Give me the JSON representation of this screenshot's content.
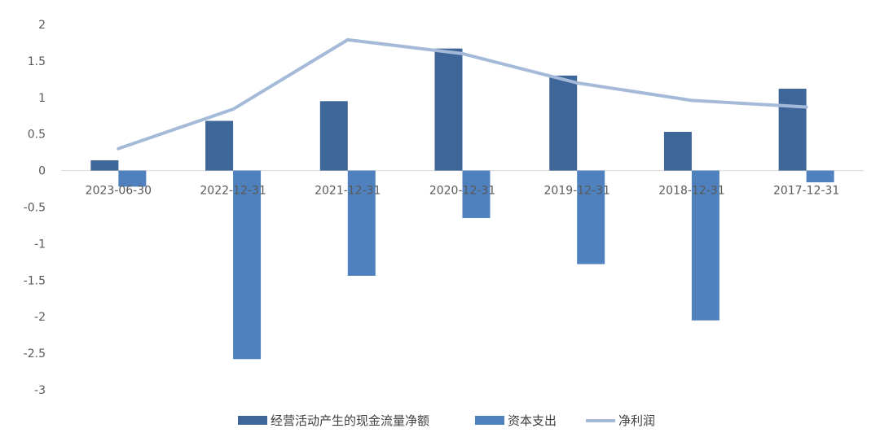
{
  "chart_data": {
    "type": "bar",
    "categories": [
      "2023-06-30",
      "2022-12-31",
      "2021-12-31",
      "2020-12-31",
      "2019-12-31",
      "2018-12-31",
      "2017-12-31"
    ],
    "ylim": [
      -3,
      2
    ],
    "yticks": [
      2,
      1.5,
      1,
      0.5,
      0,
      -0.5,
      -1,
      -1.5,
      -2,
      -2.5,
      -3
    ],
    "ytick_labels": [
      "2",
      "1.5",
      "1",
      "0.5",
      "0",
      "-0.5",
      "-1",
      "-1.5",
      "-2",
      "-2.5",
      "-3"
    ],
    "grid": false,
    "legend_position": "bottom",
    "series": [
      {
        "name": "经营活动产生的现金流量净额",
        "type": "bar",
        "color": "#3F6699",
        "values": [
          0.14,
          0.68,
          0.95,
          1.67,
          1.3,
          0.53,
          1.12
        ]
      },
      {
        "name": "资本支出",
        "type": "bar",
        "color": "#4E81BD",
        "values": [
          -0.22,
          -2.58,
          -1.44,
          -0.65,
          -1.28,
          -2.05,
          -0.16
        ]
      },
      {
        "name": "净利润",
        "type": "line",
        "color": "#A5B9D9",
        "values": [
          0.3,
          0.84,
          1.79,
          1.6,
          1.2,
          0.96,
          0.87
        ]
      }
    ]
  }
}
